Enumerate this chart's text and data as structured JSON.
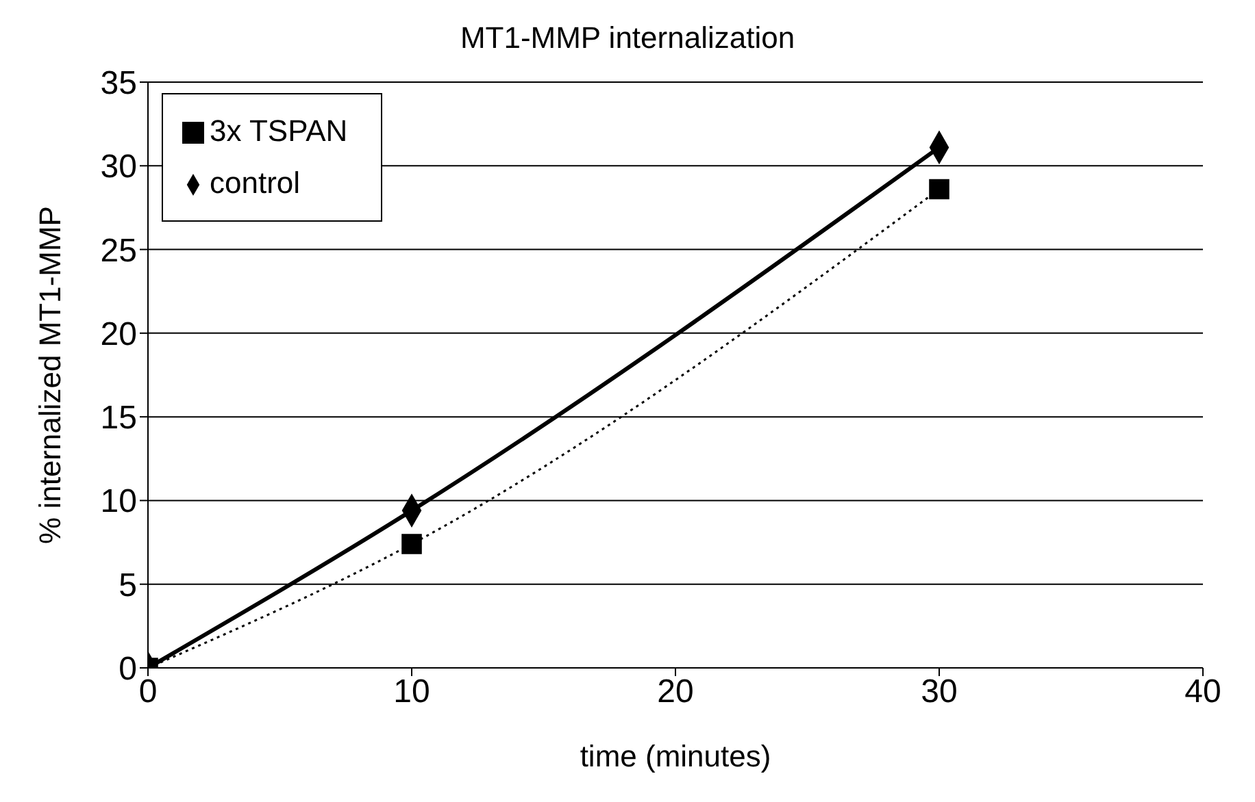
{
  "chart_data": {
    "type": "line",
    "title": "MT1-MMP internalization",
    "xlabel": "time (minutes)",
    "ylabel": "% internalized MT1-MMP",
    "x": [
      0,
      10,
      30
    ],
    "series": [
      {
        "name": "control",
        "color": "#000000",
        "values": [
          0,
          9.4,
          31.1
        ],
        "marker": "diamond",
        "line_style": "solid"
      },
      {
        "name": "3x TSPAN",
        "color": "#000000",
        "values": [
          0,
          7.4,
          28.6
        ],
        "marker": "square",
        "line_style": "dotted"
      }
    ],
    "xlim": [
      0,
      40
    ],
    "xticks": [
      0,
      10,
      20,
      30,
      40
    ],
    "ylim": [
      0,
      35
    ],
    "yticks": [
      0,
      5,
      10,
      15,
      20,
      25,
      30,
      35
    ],
    "grid": "y",
    "legend": "top left"
  }
}
